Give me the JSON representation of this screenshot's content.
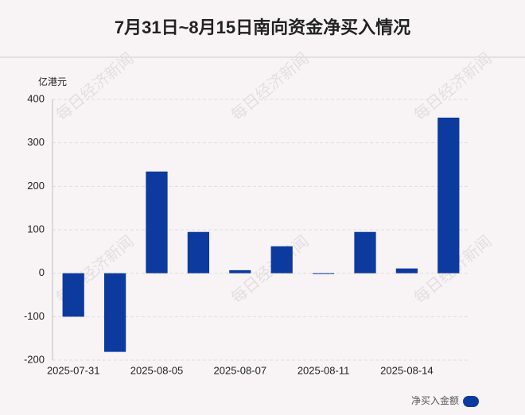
{
  "chart_data": {
    "type": "bar",
    "title": "7月31日~8月15日南向资金净买入情况",
    "y_unit": "亿港元",
    "watermark": "每日经济新闻",
    "categories": [
      "2025-07-31",
      null,
      "2025-08-05",
      null,
      "2025-08-07",
      null,
      "2025-08-11",
      null,
      "2025-08-14",
      null
    ],
    "series": [
      {
        "name": "净买入金额",
        "color": "#0d3a9e",
        "values": [
          -100,
          -181,
          234,
          95,
          7,
          62,
          -1,
          95,
          11,
          358
        ]
      }
    ],
    "ylim": [
      -200,
      400
    ],
    "yticks": [
      -200,
      -100,
      0,
      100,
      200,
      300,
      400
    ],
    "grid": true,
    "legend": "bottom-right"
  }
}
